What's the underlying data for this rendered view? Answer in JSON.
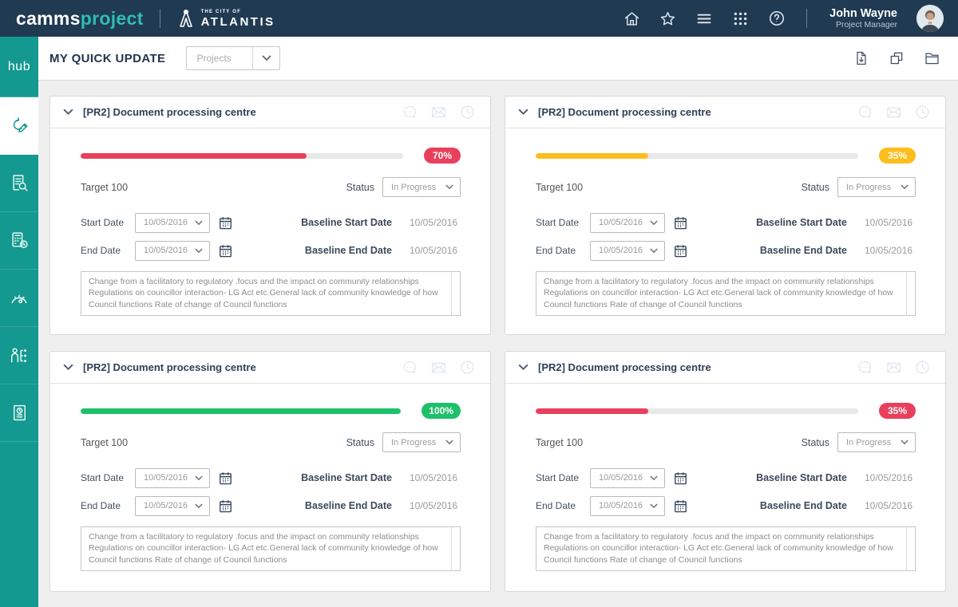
{
  "navbar": {
    "brand_part1": "camms",
    "brand_part2": "project",
    "client_tagline": "THE CITY OF",
    "client_name": "ATLANTIS",
    "icons": [
      "home-icon",
      "star-icon",
      "menu-icon",
      "apps-grid-icon",
      "help-icon"
    ],
    "user": {
      "name": "John Wayne",
      "role": "Project Manager"
    }
  },
  "sidebar": {
    "logo": "hub",
    "items": [
      "quick-update",
      "report-review",
      "planner",
      "performance-gauge",
      "people-hierarchy",
      "documents"
    ],
    "active_item": "quick-update"
  },
  "header": {
    "title": "MY QUICK UPDATE",
    "filter_value": "Projects",
    "icons": [
      "export-page-icon",
      "copy-icon",
      "folder-icon"
    ]
  },
  "colors": {
    "red": "#e8405c",
    "amber": "#fcbe1c",
    "green": "#1fc06a",
    "navy": "#203a52",
    "teal": "#13998f"
  },
  "cards": [
    {
      "title": "[PR2] Document processing centre",
      "progress": {
        "percent": 70,
        "label": "70%",
        "color": "red"
      },
      "target": "Target 100",
      "status": {
        "label": "Status",
        "value": "In Progress"
      },
      "dates": {
        "start": {
          "label": "Start Date",
          "value": "10/05/2016"
        },
        "end": {
          "label": "End Date",
          "value": "10/05/2016"
        },
        "baseline_start": {
          "label": "Baseline Start Date",
          "value": "10/05/2016"
        },
        "baseline_end": {
          "label": "Baseline End Date",
          "value": "10/05/2016"
        }
      },
      "comment": "Change from a facilitatory to regulatory .focus and the impact on community relationships Regulations on councillor interaction- LG Act etc.General lack of community knowledge of how Council functions Rate of change of Council functions"
    },
    {
      "title": "[PR2] Document processing centre",
      "progress": {
        "percent": 35,
        "label": "35%",
        "color": "amber"
      },
      "target": "Target 100",
      "status": {
        "label": "Status",
        "value": "In Progress"
      },
      "dates": {
        "start": {
          "label": "Start Date",
          "value": "10/05/2016"
        },
        "end": {
          "label": "End Date",
          "value": "10/05/2016"
        },
        "baseline_start": {
          "label": "Baseline Start Date",
          "value": "10/05/2016"
        },
        "baseline_end": {
          "label": "Baseline End Date",
          "value": "10/05/2016"
        }
      },
      "comment": "Change from a facilitatory to regulatory .focus and the impact on community relationships Regulations on councillor interaction- LG Act etc.General lack of community knowledge of how Council functions Rate of change of Council functions"
    },
    {
      "title": "[PR2] Document processing centre",
      "progress": {
        "percent": 100,
        "label": "100%",
        "color": "green"
      },
      "target": "Target 100",
      "status": {
        "label": "Status",
        "value": "In Progress"
      },
      "dates": {
        "start": {
          "label": "Start Date",
          "value": "10/05/2016"
        },
        "end": {
          "label": "End Date",
          "value": "10/05/2016"
        },
        "baseline_start": {
          "label": "Baseline Start Date",
          "value": "10/05/2016"
        },
        "baseline_end": {
          "label": "Baseline End Date",
          "value": "10/05/2016"
        }
      },
      "comment": "Change from a facilitatory to regulatory .focus and the impact on community relationships Regulations on councillor interaction- LG Act etc.General lack of community knowledge of how Council functions Rate of change of Council functions"
    },
    {
      "title": "[PR2] Document processing centre",
      "progress": {
        "percent": 35,
        "label": "35%",
        "color": "red"
      },
      "target": "Target 100",
      "status": {
        "label": "Status",
        "value": "In Progress"
      },
      "dates": {
        "start": {
          "label": "Start Date",
          "value": "10/05/2016"
        },
        "end": {
          "label": "End Date",
          "value": "10/05/2016"
        },
        "baseline_start": {
          "label": "Baseline Start Date",
          "value": "10/05/2016"
        },
        "baseline_end": {
          "label": "Baseline End Date",
          "value": "10/05/2016"
        }
      },
      "comment": "Change from a facilitatory to regulatory .focus and the impact on community relationships Regulations on councillor interaction- LG Act etc.General lack of community knowledge of how Council functions Rate of change of Council functions"
    }
  ]
}
